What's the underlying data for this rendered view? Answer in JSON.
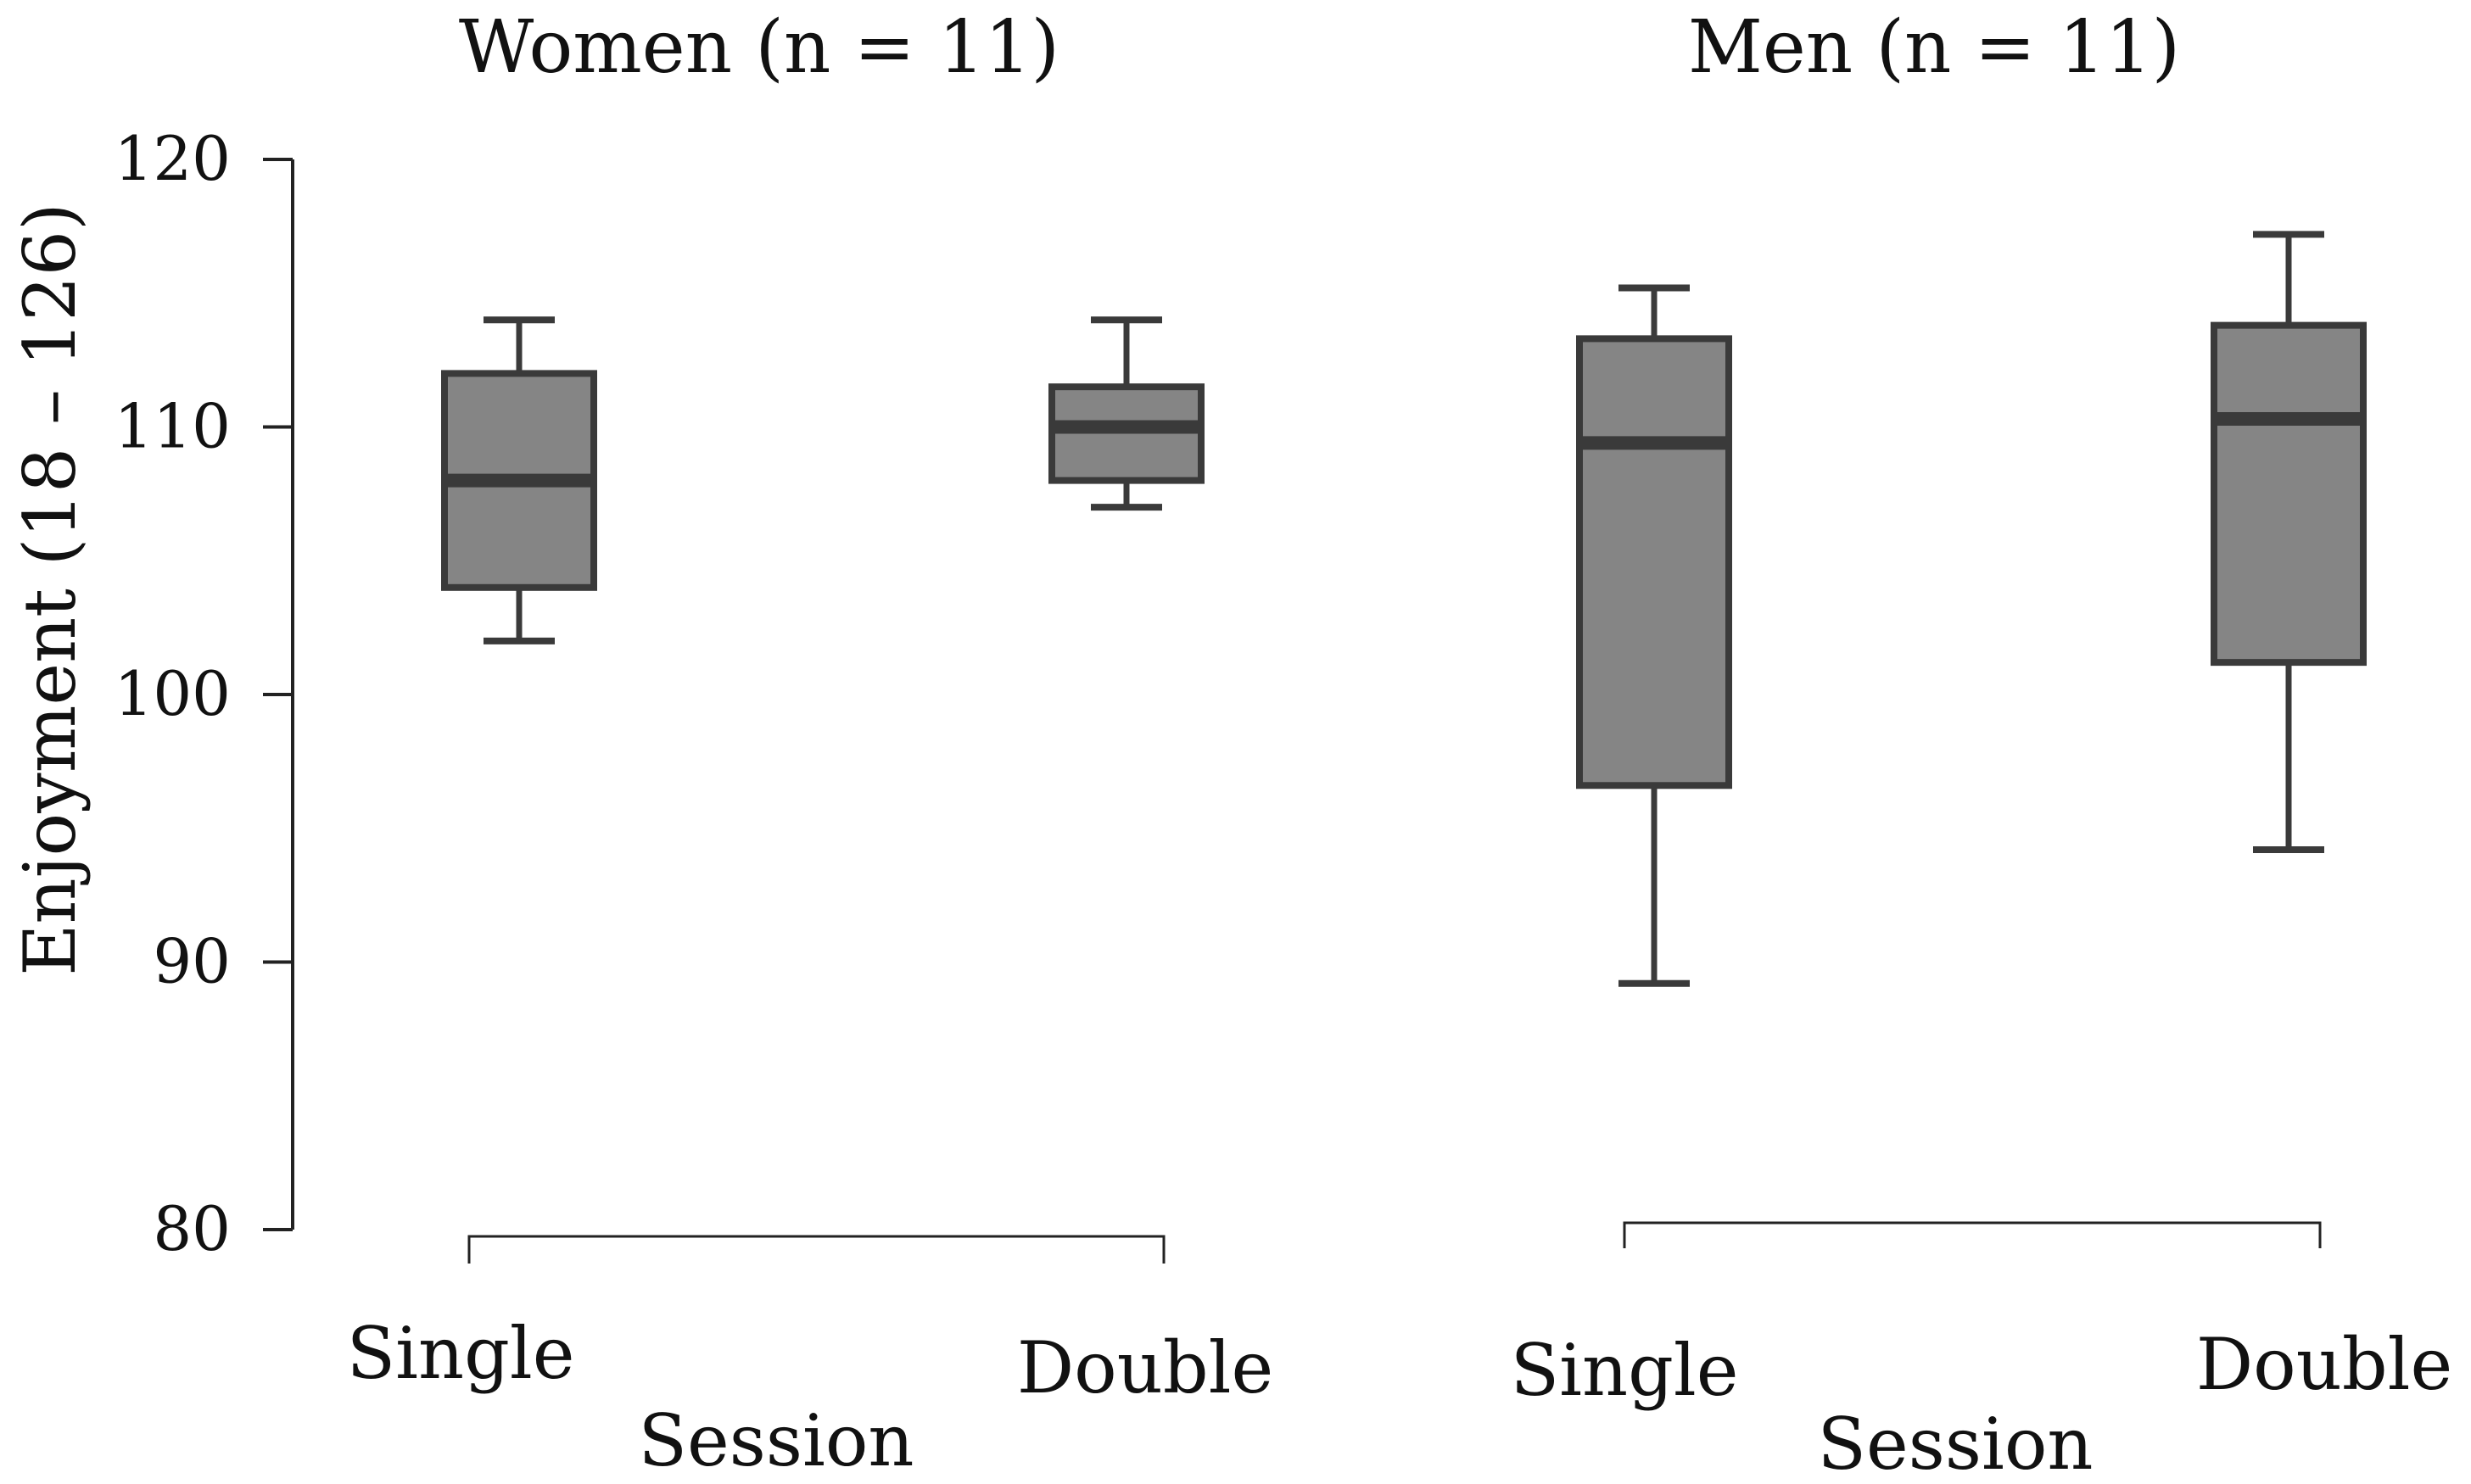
{
  "chart_data": {
    "type": "boxplot",
    "ylabel": "Enjoyment (18 – 126)",
    "ylim": [
      80,
      120
    ],
    "yticks": [
      80,
      90,
      100,
      110,
      120
    ],
    "panels": [
      {
        "title": "Women (n = 11)",
        "xlabel": "Session",
        "categories": [
          "Single",
          "Double"
        ],
        "boxes": [
          {
            "category": "Single",
            "whisker_low": 102,
            "q1": 104,
            "median": 108,
            "q3": 112,
            "whisker_high": 114
          },
          {
            "category": "Double",
            "whisker_low": 107,
            "q1": 108,
            "median": 110,
            "q3": 111.5,
            "whisker_high": 114
          }
        ]
      },
      {
        "title": "Men (n = 11)",
        "xlabel": "Session",
        "categories": [
          "Single",
          "Double"
        ],
        "boxes": [
          {
            "category": "Single",
            "whisker_low": 89.2,
            "q1": 96.6,
            "median": 109.4,
            "q3": 113.3,
            "whisker_high": 115.2
          },
          {
            "category": "Double",
            "whisker_low": 94.2,
            "q1": 101.2,
            "median": 110.3,
            "q3": 113.8,
            "whisker_high": 117.2
          }
        ]
      }
    ],
    "colors": {
      "box_fill": "#858585",
      "box_stroke": "#3a3a3a",
      "axis": "#222222"
    }
  }
}
